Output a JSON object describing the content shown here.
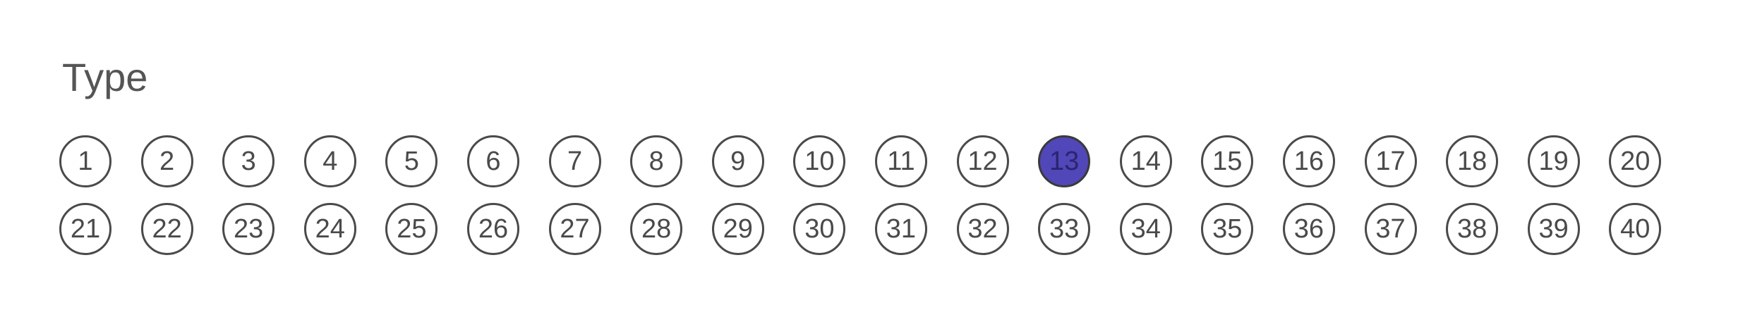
{
  "form": {
    "title": "Type",
    "selected": "13",
    "fill_color": "#5147b8",
    "options": [
      "1",
      "2",
      "3",
      "4",
      "5",
      "6",
      "7",
      "8",
      "9",
      "10",
      "11",
      "12",
      "13",
      "14",
      "15",
      "16",
      "17",
      "18",
      "19",
      "20",
      "21",
      "22",
      "23",
      "24",
      "25",
      "26",
      "27",
      "28",
      "29",
      "30",
      "31",
      "32",
      "33",
      "34",
      "35",
      "36",
      "37",
      "38",
      "39",
      "40"
    ]
  }
}
